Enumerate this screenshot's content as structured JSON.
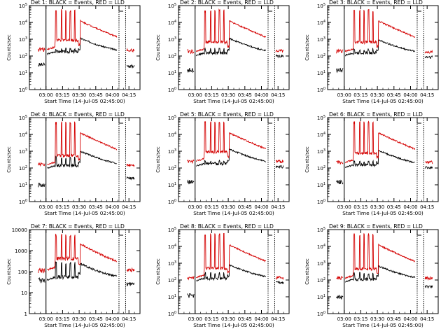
{
  "colors": {
    "events": "#000000",
    "lld": "#d40000",
    "axis": "#000000",
    "background": "#ffffff"
  },
  "chart_data": [
    {
      "type": "line",
      "title": "Det 1: BLACK = Events, RED = LLD",
      "xlabel": "Start Time (14-Jul-05 02:45:00)",
      "ylabel": "Counts/sec",
      "ylog": true,
      "ylim": [
        1,
        100000
      ],
      "ytick_labels": [
        "10^0",
        "10^1",
        "10^2",
        "10^3",
        "10^4",
        "10^5"
      ],
      "xtick_labels": [
        "03:00",
        "03:15",
        "03:30",
        "03:45",
        "04:00",
        "04:15"
      ],
      "xlim": [
        "02:45",
        "04:25"
      ],
      "series": [
        {
          "name": "BLACK = Events",
          "color": "#000000",
          "base": 130,
          "spike": 300,
          "tail": 1000,
          "late": 25,
          "pre": 30
        },
        {
          "name": "RED = LLD",
          "color": "#d40000",
          "base": 250,
          "spike": 60000,
          "tail": 12000,
          "late": 220,
          "pre": 250
        }
      ]
    },
    {
      "type": "line",
      "title": "Det 2: BLACK = Events, RED = LLD",
      "xlabel": "Start Time (14-Jul-05 02:45:00)",
      "ylabel": "Counts/sec",
      "ylog": true,
      "ylim": [
        1,
        100000
      ],
      "ytick_labels": [
        "10^0",
        "10^1",
        "10^2",
        "10^3",
        "10^4",
        "10^5"
      ],
      "xtick_labels": [
        "03:00",
        "03:15",
        "03:30",
        "03:45",
        "04:00",
        "04:15"
      ],
      "xlim": [
        "02:45",
        "04:25"
      ],
      "series": [
        {
          "name": "BLACK = Events",
          "color": "#000000",
          "base": 110,
          "spike": 300,
          "tail": 1000,
          "late": 100,
          "pre": 15
        },
        {
          "name": "RED = LLD",
          "color": "#d40000",
          "base": 190,
          "spike": 60000,
          "tail": 12000,
          "late": 200,
          "pre": 190
        }
      ]
    },
    {
      "type": "line",
      "title": "Det 3: BLACK = Events, RED = LLD",
      "xlabel": "Start Time (14-Jul-05 02:45:00)",
      "ylabel": "Counts/sec",
      "ylog": true,
      "ylim": [
        1,
        100000
      ],
      "ytick_labels": [
        "10^0",
        "10^1",
        "10^2",
        "10^3",
        "10^4",
        "10^5"
      ],
      "xtick_labels": [
        "03:00",
        "03:15",
        "03:30",
        "03:45",
        "04:00",
        "04:15"
      ],
      "xlim": [
        "02:45",
        "04:25"
      ],
      "series": [
        {
          "name": "BLACK = Events",
          "color": "#000000",
          "base": 110,
          "spike": 300,
          "tail": 800,
          "late": 90,
          "pre": 15
        },
        {
          "name": "RED = LLD",
          "color": "#d40000",
          "base": 190,
          "spike": 60000,
          "tail": 12000,
          "late": 180,
          "pre": 190
        }
      ]
    },
    {
      "type": "line",
      "title": "Det 4: BLACK = Events, RED = LLD",
      "xlabel": "Start Time (14-Jul-05 02:45:00)",
      "ylabel": "Counts/sec",
      "ylog": true,
      "ylim": [
        1,
        100000
      ],
      "ytick_labels": [
        "10^0",
        "10^1",
        "10^2",
        "10^3",
        "10^4",
        "10^5"
      ],
      "xtick_labels": [
        "03:00",
        "03:15",
        "03:30",
        "03:45",
        "04:00",
        "04:15"
      ],
      "xlim": [
        "02:45",
        "04:25"
      ],
      "series": [
        {
          "name": "BLACK = Events",
          "color": "#000000",
          "base": 100,
          "spike": 500,
          "tail": 900,
          "late": 25,
          "pre": 10
        },
        {
          "name": "RED = LLD",
          "color": "#d40000",
          "base": 160,
          "spike": 60000,
          "tail": 12000,
          "late": 150,
          "pre": 160
        }
      ]
    },
    {
      "type": "line",
      "title": "Det 5: BLACK = Events, RED = LLD",
      "xlabel": "Start Time (14-Jul-05 02:45:00)",
      "ylabel": "Counts/sec",
      "ylog": true,
      "ylim": [
        1,
        100000
      ],
      "ytick_labels": [
        "10^0",
        "10^1",
        "10^2",
        "10^3",
        "10^4",
        "10^5"
      ],
      "xtick_labels": [
        "03:00",
        "03:15",
        "03:30",
        "03:45",
        "04:00",
        "04:15"
      ],
      "xlim": [
        "02:45",
        "04:25"
      ],
      "series": [
        {
          "name": "BLACK = Events",
          "color": "#000000",
          "base": 130,
          "spike": 300,
          "tail": 1200,
          "late": 120,
          "pre": 15
        },
        {
          "name": "RED = LLD",
          "color": "#d40000",
          "base": 260,
          "spike": 60000,
          "tail": 12000,
          "late": 250,
          "pre": 260
        }
      ]
    },
    {
      "type": "line",
      "title": "Det 6: BLACK = Events, RED = LLD",
      "xlabel": "Start Time (14-Jul-05 02:45:00)",
      "ylabel": "Counts/sec",
      "ylog": true,
      "ylim": [
        1,
        100000
      ],
      "ytick_labels": [
        "10^0",
        "10^1",
        "10^2",
        "10^3",
        "10^4",
        "10^5"
      ],
      "xtick_labels": [
        "03:00",
        "03:15",
        "03:30",
        "03:45",
        "04:00",
        "04:15"
      ],
      "xlim": [
        "02:45",
        "04:25"
      ],
      "series": [
        {
          "name": "BLACK = Events",
          "color": "#000000",
          "base": 110,
          "spike": 300,
          "tail": 1000,
          "late": 110,
          "pre": 15
        },
        {
          "name": "RED = LLD",
          "color": "#d40000",
          "base": 220,
          "spike": 60000,
          "tail": 12000,
          "late": 220,
          "pre": 220
        }
      ]
    },
    {
      "type": "line",
      "title": "Det 7: BLACK = Events, RED = LLD",
      "xlabel": "Start Time (14-Jul-05 02:45:00)",
      "ylabel": "Counts/sec",
      "ylog": true,
      "ylim": [
        1,
        10000
      ],
      "ytick_labels": [
        "1",
        "10",
        "100",
        "1000",
        "10000"
      ],
      "xtick_labels": [
        "03:00",
        "03:15",
        "03:30",
        "03:45",
        "04:00",
        "04:15"
      ],
      "xlim": [
        "02:45",
        "04:25"
      ],
      "series": [
        {
          "name": "BLACK = Events",
          "color": "#000000",
          "base": 40,
          "spike": 300,
          "tail": 200,
          "late": 25,
          "pre": 40
        },
        {
          "name": "RED = LLD",
          "color": "#d40000",
          "base": 120,
          "spike": 6000,
          "tail": 2000,
          "late": 120,
          "pre": 120
        }
      ]
    },
    {
      "type": "line",
      "title": "Det 8: BLACK = Events, RED = LLD",
      "xlabel": "Start Time (14-Jul-05 02:45:00)",
      "ylabel": "Counts/sec",
      "ylog": true,
      "ylim": [
        1,
        100000
      ],
      "ytick_labels": [
        "10^0",
        "10^1",
        "10^2",
        "10^3",
        "10^4",
        "10^5"
      ],
      "xtick_labels": [
        "03:00",
        "03:15",
        "03:30",
        "03:45",
        "04:00",
        "04:15"
      ],
      "xlim": [
        "02:45",
        "04:25"
      ],
      "series": [
        {
          "name": "BLACK = Events",
          "color": "#000000",
          "base": 90,
          "spike": 300,
          "tail": 700,
          "late": 70,
          "pre": 12
        },
        {
          "name": "RED = LLD",
          "color": "#d40000",
          "base": 140,
          "spike": 60000,
          "tail": 12000,
          "late": 140,
          "pre": 140
        }
      ]
    },
    {
      "type": "line",
      "title": "Det 9: BLACK = Events, RED = LLD",
      "xlabel": "Start Time (14-Jul-05 02:45:00)",
      "ylabel": "Counts/sec",
      "ylog": true,
      "ylim": [
        1,
        100000
      ],
      "ytick_labels": [
        "10^0",
        "10^1",
        "10^2",
        "10^3",
        "10^4",
        "10^5"
      ],
      "xtick_labels": [
        "03:00",
        "03:15",
        "03:30",
        "03:45",
        "04:00",
        "04:15"
      ],
      "xlim": [
        "02:45",
        "04:25"
      ],
      "series": [
        {
          "name": "BLACK = Events",
          "color": "#000000",
          "base": 80,
          "spike": 300,
          "tail": 600,
          "late": 40,
          "pre": 10
        },
        {
          "name": "RED = LLD",
          "color": "#d40000",
          "base": 130,
          "spike": 60000,
          "tail": 12000,
          "late": 130,
          "pre": 130
        }
      ]
    }
  ]
}
